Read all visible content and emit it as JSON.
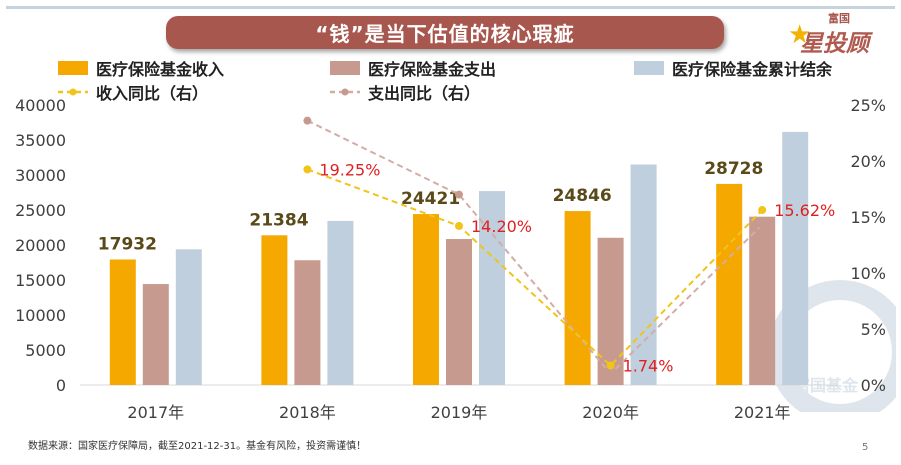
{
  "slide": {
    "title": "“钱”是当下估值的核心瑕疵",
    "logo_top": "富国",
    "logo_main": "星投顾",
    "watermark": "富国基金",
    "footer": "数据来源：国家医疗保障局，截至2021-12-31。基金有风险，投资需谨慎！",
    "page_number": "5"
  },
  "legend": {
    "income": "医疗保险基金收入",
    "expense": "医疗保险基金支出",
    "balance": "医疗保险基金累计结余",
    "income_yoy": "收入同比（右）",
    "expense_yoy": "支出同比（右）"
  },
  "colors": {
    "income": "#f5a800",
    "expense": "#c69a8f",
    "balance": "#bfcfdd",
    "income_yoy": "#f0c419",
    "expense_yoy": "#d3aca6",
    "label_red": "#e02020",
    "label_brown": "#5a4a1a",
    "title_bar": "#a8574f"
  },
  "chart_data": {
    "type": "bar",
    "categories": [
      "2017年",
      "2018年",
      "2019年",
      "2020年",
      "2021年"
    ],
    "series": [
      {
        "name": "医疗保险基金收入",
        "axis": "left",
        "values": [
          17932,
          21384,
          24421,
          24846,
          28728
        ],
        "data_labels": [
          "17932",
          "21384",
          "24421",
          "24846",
          "28728"
        ]
      },
      {
        "name": "医疗保险基金支出",
        "axis": "left",
        "values": [
          14422,
          17822,
          20854,
          21032,
          24043
        ]
      },
      {
        "name": "医疗保险基金累计结余",
        "axis": "left",
        "values": [
          19386,
          23440,
          27697,
          31500,
          36156
        ]
      }
    ],
    "lines": [
      {
        "name": "收入同比（右）",
        "axis": "right",
        "x_index": [
          1,
          2,
          3,
          4
        ],
        "values": [
          19.25,
          14.2,
          1.74,
          15.62
        ],
        "data_labels": [
          "19.25%",
          "14.20%",
          "1.74%",
          "15.62%"
        ]
      },
      {
        "name": "支出同比（右）",
        "axis": "right",
        "x_index": [
          1,
          2,
          3,
          4
        ],
        "values": [
          23.6,
          17.0,
          1.0,
          14.3
        ]
      }
    ],
    "y_left": {
      "min": 0,
      "max": 40000,
      "ticks": [
        "0",
        "5000",
        "10000",
        "15000",
        "20000",
        "25000",
        "30000",
        "35000",
        "40000"
      ]
    },
    "y_right": {
      "min": 0,
      "max": 25,
      "ticks": [
        "0%",
        "5%",
        "10%",
        "15%",
        "20%",
        "25%"
      ]
    },
    "grid": false
  }
}
